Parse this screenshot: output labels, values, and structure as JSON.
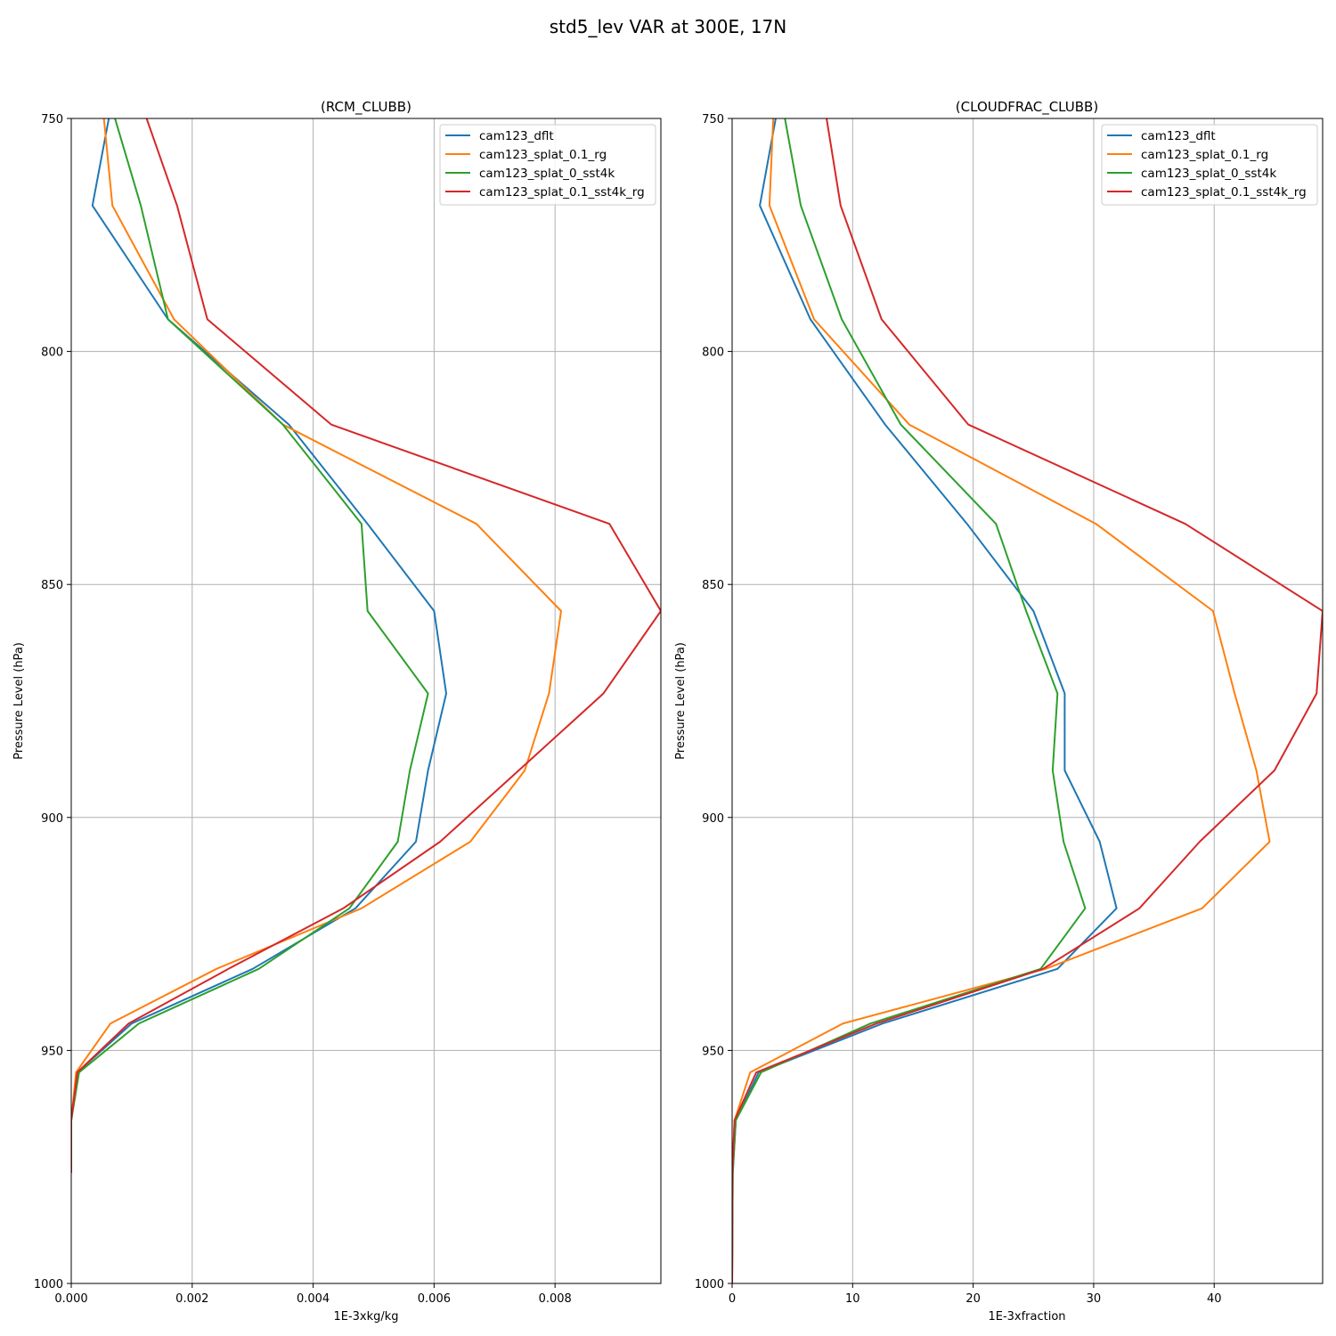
{
  "figure": {
    "suptitle": "std5_lev VAR at 300E, 17N",
    "colors": {
      "cam123_dflt": "#1f77b4",
      "cam123_splat_0.1_rg": "#ff7f0e",
      "cam123_splat_0_sst4k": "#2ca02c",
      "cam123_splat_0.1_sst4k_rg": "#d62728",
      "grid": "#b0b0b0"
    }
  },
  "chart_data": [
    {
      "type": "line",
      "title": "(RCM_CLUBB)",
      "xlabel": "1E-3xkg/kg",
      "ylabel": "Pressure Level (hPa)",
      "xlim": [
        0,
        0.00975
      ],
      "ylim": [
        1000,
        750
      ],
      "y_inverted": true,
      "grid": true,
      "legend_position": "upper right",
      "xticks": [
        0,
        0.002,
        0.004,
        0.006,
        0.008
      ],
      "xtick_labels": [
        "0.000",
        "0.002",
        "0.004",
        "0.006",
        "0.008"
      ],
      "yticks": [
        750,
        800,
        850,
        900,
        950,
        1000
      ],
      "ytick_labels": [
        "750",
        "800",
        "850",
        "900",
        "950",
        "1000"
      ],
      "y_levels": [
        744.6,
        768.7,
        793.1,
        815.7,
        837.0,
        855.7,
        873.4,
        889.9,
        905.2,
        919.5,
        932.5,
        944.2,
        954.7,
        965.0,
        976.3
      ],
      "series": [
        {
          "name": "cam123_dflt",
          "values": [
            0.0007,
            0.00035,
            0.0016,
            0.0036,
            0.0049,
            0.006,
            0.0062,
            0.0059,
            0.0057,
            0.0047,
            0.003,
            0.001,
            0.0001,
            0.0,
            0.0
          ]
        },
        {
          "name": "cam123_splat_0.1_rg",
          "values": [
            0.0005,
            0.00068,
            0.0017,
            0.0035,
            0.0067,
            0.0081,
            0.0079,
            0.0075,
            0.0066,
            0.0048,
            0.0024,
            0.00065,
            8e-05,
            0.0,
            0.0
          ]
        },
        {
          "name": "cam123_splat_0_sst4k",
          "values": [
            0.0006,
            0.00115,
            0.0016,
            0.0035,
            0.0048,
            0.0049,
            0.0059,
            0.0056,
            0.0054,
            0.0046,
            0.0031,
            0.00112,
            0.00013,
            0.0,
            0.0
          ]
        },
        {
          "name": "cam123_splat_0.1_sst4k_rg",
          "values": [
            0.0011,
            0.00175,
            0.00225,
            0.0043,
            0.0089,
            0.00975,
            0.0088,
            0.0074,
            0.0061,
            0.0045,
            0.0026,
            0.00095,
            0.0001,
            0.0,
            0.0
          ]
        }
      ]
    },
    {
      "type": "line",
      "title": "(CLOUDFRAC_CLUBB)",
      "xlabel": "1E-3xfraction",
      "ylabel": "Pressure Level (hPa)",
      "xlim": [
        0,
        49
      ],
      "ylim": [
        1000,
        750
      ],
      "y_inverted": true,
      "grid": true,
      "legend_position": "upper right",
      "xticks": [
        0,
        10,
        20,
        30,
        40
      ],
      "xtick_labels": [
        "0",
        "10",
        "20",
        "30",
        "40"
      ],
      "yticks": [
        750,
        800,
        850,
        900,
        950,
        1000
      ],
      "ytick_labels": [
        "750",
        "800",
        "850",
        "900",
        "950",
        "1000"
      ],
      "y_levels": [
        744.6,
        768.7,
        793.1,
        815.7,
        837.0,
        855.7,
        873.4,
        889.9,
        905.2,
        919.5,
        932.5,
        944.2,
        954.7,
        965.0,
        976.3,
        1000.0
      ],
      "series": [
        {
          "name": "cam123_dflt",
          "values": [
            4.0,
            2.3,
            6.5,
            12.7,
            19.5,
            25.0,
            27.6,
            27.6,
            30.5,
            31.9,
            27.0,
            12.5,
            2.2,
            0.3,
            0.05,
            0.0
          ]
        },
        {
          "name": "cam123_splat_0.1_rg",
          "values": [
            3.5,
            3.1,
            6.8,
            14.7,
            30.2,
            39.9,
            41.7,
            43.5,
            44.6,
            39.0,
            26.0,
            9.2,
            1.5,
            0.2,
            0.02,
            0.0
          ]
        },
        {
          "name": "cam123_splat_0_sst4k",
          "values": [
            4.0,
            5.7,
            9.1,
            14.0,
            21.9,
            24.4,
            27.0,
            26.6,
            27.5,
            29.3,
            25.6,
            11.5,
            2.4,
            0.3,
            0.05,
            0.0
          ]
        },
        {
          "name": "cam123_splat_0.1_sst4k_rg",
          "values": [
            7.5,
            9.0,
            12.4,
            19.6,
            37.6,
            49.0,
            48.5,
            45.0,
            38.8,
            33.8,
            25.8,
            12.0,
            2.0,
            0.2,
            0.02,
            0.0
          ]
        }
      ]
    }
  ]
}
